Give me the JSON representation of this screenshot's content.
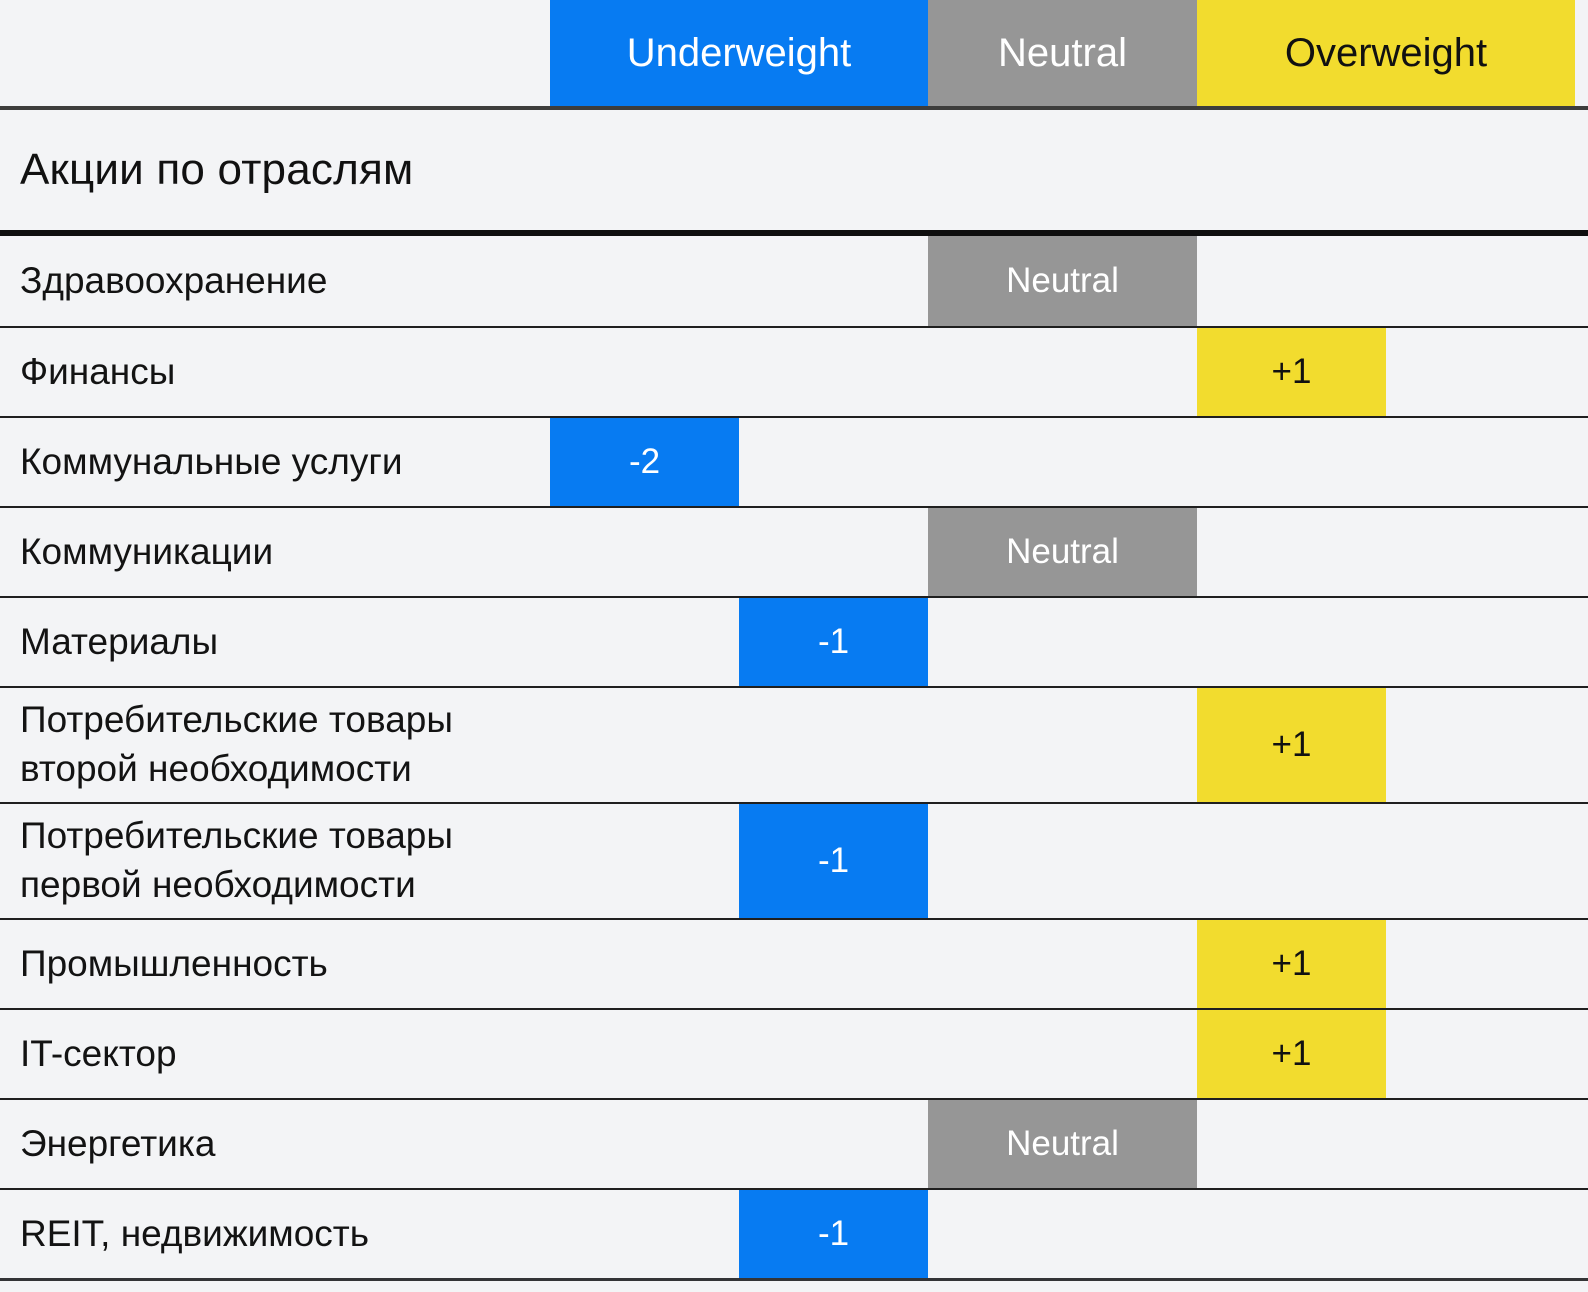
{
  "header": {
    "underweight": "Underweight",
    "neutral": "Neutral",
    "overweight": "Overweight"
  },
  "section": {
    "title": "Акции по отраслям"
  },
  "rows": [
    {
      "label": "Здравоохранение",
      "slot": "neutral",
      "display": "Neutral",
      "value": 0,
      "tall": false
    },
    {
      "label": "Финансы",
      "slot": "plus1",
      "display": "+1",
      "value": 1,
      "tall": false
    },
    {
      "label": "Коммунальные услуги",
      "slot": "minus2",
      "display": "-2",
      "value": -2,
      "tall": false
    },
    {
      "label": "Коммуникации",
      "slot": "neutral",
      "display": "Neutral",
      "value": 0,
      "tall": false
    },
    {
      "label": "Материалы",
      "slot": "minus1",
      "display": "-1",
      "value": -1,
      "tall": false
    },
    {
      "label": "Потребительские товары второй необходимости",
      "slot": "plus1",
      "display": "+1",
      "value": 1,
      "tall": true
    },
    {
      "label": "Потребительские товары первой необходимости",
      "slot": "minus1",
      "display": "-1",
      "value": -1,
      "tall": true
    },
    {
      "label": "Промышленность",
      "slot": "plus1",
      "display": "+1",
      "value": 1,
      "tall": false
    },
    {
      "label": "IT-сектор",
      "slot": "plus1",
      "display": "+1",
      "value": 1,
      "tall": false
    },
    {
      "label": "Энергетика",
      "slot": "neutral",
      "display": "Neutral",
      "value": 0,
      "tall": false
    },
    {
      "label": "REIT, недвижимость",
      "slot": "minus1",
      "display": "-1",
      "value": -1,
      "tall": false
    }
  ],
  "chart_data": {
    "type": "table",
    "title": "Акции по отраслям",
    "scale_headers": [
      "Underweight",
      "Neutral",
      "Overweight"
    ],
    "scale_range": [
      -2,
      2
    ],
    "categories": [
      "Здравоохранение",
      "Финансы",
      "Коммунальные услуги",
      "Коммуникации",
      "Материалы",
      "Потребительские товары второй необходимости",
      "Потребительские товары первой необходимости",
      "Промышленность",
      "IT-сектор",
      "Энергетика",
      "REIT, недвижимость"
    ],
    "values": [
      0,
      1,
      -2,
      0,
      -1,
      1,
      -1,
      1,
      1,
      0,
      -1
    ],
    "value_labels": [
      "Neutral",
      "+1",
      "-2",
      "Neutral",
      "-1",
      "+1",
      "-1",
      "+1",
      "+1",
      "Neutral",
      "-1"
    ]
  },
  "colors": {
    "background": "#F3F4F6",
    "underweight_blue": "#077BF2",
    "neutral_gray": "#969696",
    "overweight_yellow": "#F2DC2E",
    "text_dark": "#111111",
    "text_ink": "#131313",
    "text_light": "#FFFFFF",
    "header_divider": "#3D3D3C",
    "title_rule": "#0F0F0F",
    "row_separator": "#1F1F1F",
    "bottom_rule": "#333436"
  }
}
